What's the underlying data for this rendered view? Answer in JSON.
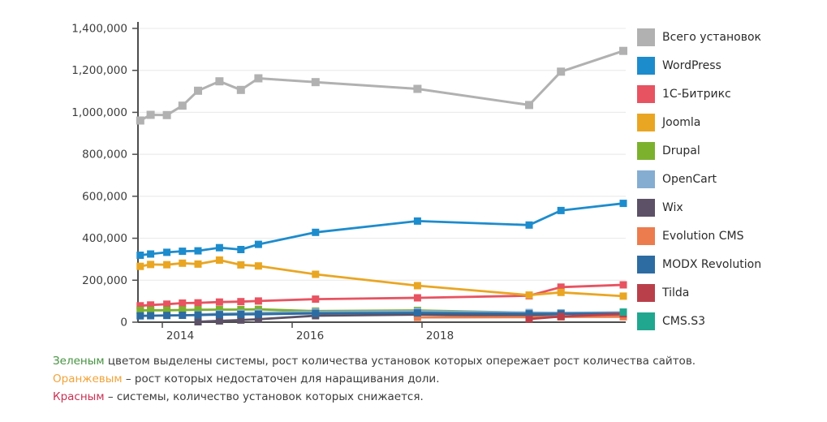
{
  "chart_data": {
    "type": "line",
    "title": "",
    "xlabel": "",
    "ylabel": "",
    "grid": true,
    "legend_position": "right",
    "ylim": [
      0,
      1400000
    ],
    "y_ticks": [
      {
        "value": 0,
        "label": "0"
      },
      {
        "value": 200000,
        "label": "200,000"
      },
      {
        "value": 400000,
        "label": "400,000"
      },
      {
        "value": 600000,
        "label": "600,000"
      },
      {
        "value": 800000,
        "label": "800,000"
      },
      {
        "value": 1000000,
        "label": "1,000,000"
      },
      {
        "value": 1200000,
        "label": "1,200,000"
      },
      {
        "value": 1400000,
        "label": "1,400,000"
      }
    ],
    "x_ticks": [
      {
        "year": 2014,
        "label": "2014"
      },
      {
        "year": 2016,
        "label": "2016"
      },
      {
        "year": 2018,
        "label": "2018"
      }
    ],
    "x_years": [
      2013.66,
      2013.82,
      2014.07,
      2014.31,
      2014.55,
      2014.88,
      2015.21,
      2015.48,
      2016.36,
      2017.93,
      2019.65,
      2020.14,
      2021.1
    ],
    "series": [
      {
        "id": "total",
        "name": "Всего установок",
        "color": "#b1b1b1",
        "values": [
          961000,
          988000,
          987000,
          1032000,
          1103000,
          1148000,
          1107000,
          1162000,
          1144000,
          1112000,
          1035000,
          1194000,
          1293000
        ]
      },
      {
        "id": "wordpress",
        "name": "WordPress",
        "color": "#1d8ccd",
        "values": [
          319000,
          325000,
          333000,
          338000,
          340000,
          355000,
          346000,
          371000,
          428000,
          482000,
          463000,
          532000,
          566000
        ]
      },
      {
        "id": "bitrix",
        "name": "1С-Битрикс",
        "color": "#e85361",
        "values": [
          78000,
          82000,
          86000,
          91000,
          92000,
          96000,
          98000,
          101000,
          110000,
          116000,
          126000,
          167000,
          178000
        ]
      },
      {
        "id": "joomla",
        "name": "Joomla",
        "color": "#e9a623",
        "values": [
          266000,
          275000,
          274000,
          281000,
          277000,
          296000,
          273000,
          268000,
          228000,
          174000,
          129000,
          142000,
          124000
        ]
      },
      {
        "id": "drupal",
        "name": "Drupal",
        "color": "#7cb12e",
        "values": [
          56000,
          57000,
          57000,
          58000,
          59000,
          60000,
          60000,
          61000,
          53000,
          56000,
          45000,
          43000,
          37000
        ]
      },
      {
        "id": "opencart",
        "name": "OpenCart",
        "color": "#85add2",
        "values": [
          null,
          null,
          null,
          null,
          36000,
          40000,
          43000,
          45000,
          49000,
          52000,
          46000,
          45000,
          47000
        ]
      },
      {
        "id": "wix",
        "name": "Wix",
        "color": "#5c5166",
        "values": [
          null,
          null,
          null,
          null,
          2000,
          6000,
          10000,
          14000,
          31000,
          36000,
          30000,
          28000,
          27000
        ]
      },
      {
        "id": "evolution",
        "name": "Evolution CMS",
        "color": "#ec7c4e",
        "values": [
          null,
          null,
          null,
          null,
          null,
          null,
          null,
          null,
          null,
          23000,
          24000,
          25000,
          26000
        ]
      },
      {
        "id": "modx",
        "name": "MODX Revolution",
        "color": "#2d6ca2",
        "values": [
          30000,
          31000,
          32000,
          33000,
          34000,
          36000,
          37000,
          38000,
          42000,
          44000,
          40000,
          40000,
          42000
        ]
      },
      {
        "id": "tilda",
        "name": "Tilda",
        "color": "#b9404a",
        "values": [
          null,
          null,
          null,
          null,
          null,
          null,
          null,
          null,
          null,
          null,
          15000,
          27000,
          40000
        ]
      },
      {
        "id": "cmss3",
        "name": "CMS.S3",
        "color": "#21a78f",
        "values": [
          null,
          null,
          null,
          null,
          null,
          null,
          null,
          null,
          null,
          null,
          null,
          null,
          48000
        ]
      }
    ]
  },
  "notes": [
    {
      "word": "Зеленым",
      "color": "#469241",
      "rest": " цветом выделены системы, рост количества установок которых опережает рост количества сайтов."
    },
    {
      "word": "Оранжевым",
      "color": "#f0a43a",
      "rest": " – рост которых недостаточен для наращивания доли."
    },
    {
      "word": "Красным",
      "color": "#c93253",
      "rest": " – системы, количество установок которых снижается."
    }
  ]
}
